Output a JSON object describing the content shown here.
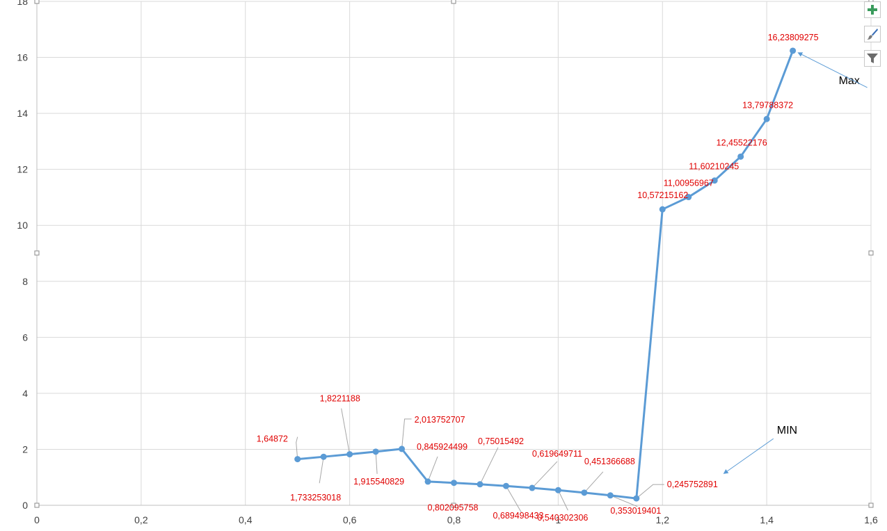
{
  "chart_data": {
    "type": "scatter",
    "mode": "lines+markers",
    "xlim": [
      0,
      1.6
    ],
    "ylim": [
      0,
      18
    ],
    "x_ticks": [
      0,
      0.2,
      0.4,
      0.6,
      0.8,
      1,
      1.2,
      1.4,
      1.6
    ],
    "y_ticks": [
      0,
      2,
      4,
      6,
      8,
      10,
      12,
      14,
      16,
      18
    ],
    "x_tick_labels": [
      "0",
      "0,2",
      "0,4",
      "0,6",
      "0,8",
      "1",
      "1,2",
      "1,4",
      "1,6"
    ],
    "y_tick_labels": [
      "0",
      "2",
      "4",
      "6",
      "8",
      "10",
      "12",
      "14",
      "16",
      "18"
    ],
    "grid": true,
    "series_color": "#5b9bd5",
    "label_color": "#e00000",
    "points": [
      {
        "x": 0.5,
        "y": 1.64872,
        "label": "1,64872"
      },
      {
        "x": 0.55,
        "y": 1.733253018,
        "label": "1,733253018"
      },
      {
        "x": 0.6,
        "y": 1.8221188,
        "label": "1,8221188"
      },
      {
        "x": 0.65,
        "y": 1.915540829,
        "label": "1,915540829"
      },
      {
        "x": 0.7,
        "y": 2.013752707,
        "label": "2,013752707"
      },
      {
        "x": 0.75,
        "y": 0.845924499,
        "label": "0,845924499"
      },
      {
        "x": 0.8,
        "y": 0.802095758,
        "label": "0,802095758"
      },
      {
        "x": 0.85,
        "y": 0.75015492,
        "label": "0,75015492"
      },
      {
        "x": 0.9,
        "y": 0.689498433,
        "label": "0,689498433"
      },
      {
        "x": 0.95,
        "y": 0.619649711,
        "label": "0,619649711"
      },
      {
        "x": 1.0,
        "y": 0.540302306,
        "label": "0,540302306"
      },
      {
        "x": 1.05,
        "y": 0.451366688,
        "label": "0,451366688"
      },
      {
        "x": 1.1,
        "y": 0.353019401,
        "label": "0,353019401"
      },
      {
        "x": 1.15,
        "y": 0.245752891,
        "label": "0,245752891"
      },
      {
        "x": 1.2,
        "y": 10.57215162,
        "label": "10,57215162"
      },
      {
        "x": 1.25,
        "y": 11.00956967,
        "label": "11,00956967"
      },
      {
        "x": 1.3,
        "y": 11.60210245,
        "label": "11,60210245"
      },
      {
        "x": 1.35,
        "y": 12.45522176,
        "label": "12,45522176"
      },
      {
        "x": 1.4,
        "y": 13.79788372,
        "label": "13,79788372"
      },
      {
        "x": 1.45,
        "y": 16.23809275,
        "label": "16,23809275"
      }
    ],
    "annotations": [
      {
        "text": "Max",
        "x": 1.45,
        "y": 16.23809275
      },
      {
        "text": "MIN",
        "x": 1.15,
        "y": 0.245752891
      }
    ]
  },
  "toolbar": {
    "buttons": [
      {
        "name": "chart-elements-button",
        "icon": "plus-icon"
      },
      {
        "name": "chart-styles-button",
        "icon": "brush-icon"
      },
      {
        "name": "chart-filters-button",
        "icon": "funnel-icon"
      }
    ]
  }
}
